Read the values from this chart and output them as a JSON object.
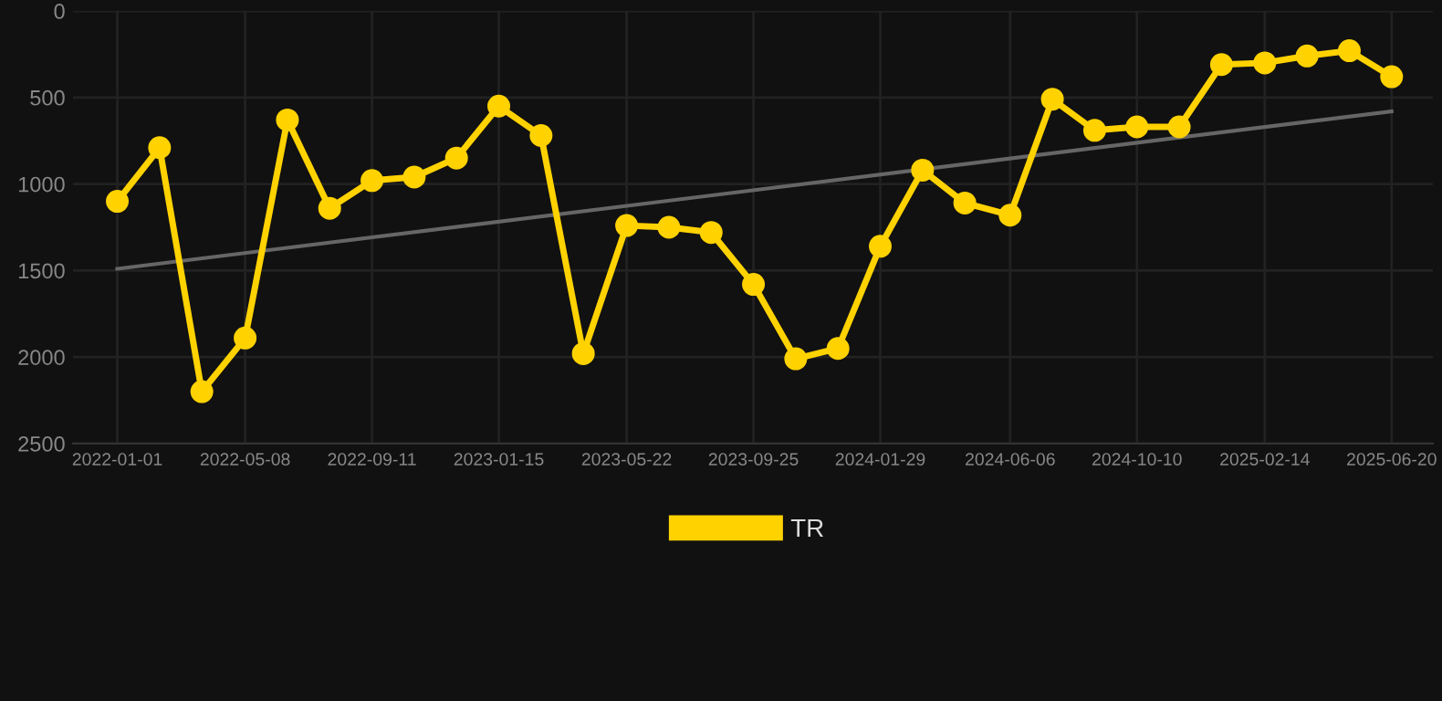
{
  "chart_data": {
    "type": "line",
    "x": [
      "2022-01-01",
      "2022-02-12",
      "2022-03-26",
      "2022-05-08",
      "2022-06-19",
      "2022-07-31",
      "2022-09-11",
      "2022-10-23",
      "2022-12-04",
      "2023-01-15",
      "2023-02-26",
      "2023-04-09",
      "2023-05-22",
      "2023-07-03",
      "2023-08-14",
      "2023-09-25",
      "2023-11-06",
      "2023-12-18",
      "2024-01-29",
      "2024-03-11",
      "2024-04-22",
      "2024-06-06",
      "2024-07-18",
      "2024-08-29",
      "2024-10-10",
      "2024-11-21",
      "2025-01-02",
      "2025-02-14",
      "2025-03-28",
      "2025-05-09",
      "2025-06-20"
    ],
    "series": [
      {
        "name": "TR",
        "color": "#ffd200",
        "marker": "circle",
        "values": [
          1100,
          790,
          2200,
          1890,
          630,
          1140,
          980,
          960,
          850,
          550,
          720,
          1980,
          1240,
          1250,
          1280,
          1580,
          2010,
          1950,
          1360,
          920,
          1110,
          1180,
          510,
          690,
          670,
          670,
          310,
          300,
          260,
          230,
          380
        ]
      },
      {
        "type": "line",
        "color": "#666666",
        "marker": "none",
        "x": [
          "2022-01-01",
          "2025-06-20"
        ],
        "values": [
          1490,
          580
        ]
      }
    ],
    "xlim": [
      "2021-11-18",
      "2025-07-31"
    ],
    "xticks": [
      "2022-01-01",
      "2022-05-08",
      "2022-09-11",
      "2023-01-15",
      "2023-05-22",
      "2023-09-25",
      "2024-01-29",
      "2024-06-06",
      "2024-10-10",
      "2025-02-14",
      "2025-06-20"
    ],
    "ylim": [
      2500,
      0
    ],
    "yticks": [
      0,
      500,
      1000,
      1500,
      2000,
      2500
    ],
    "grid": true,
    "legend": "bottom",
    "line_style": "solid"
  }
}
